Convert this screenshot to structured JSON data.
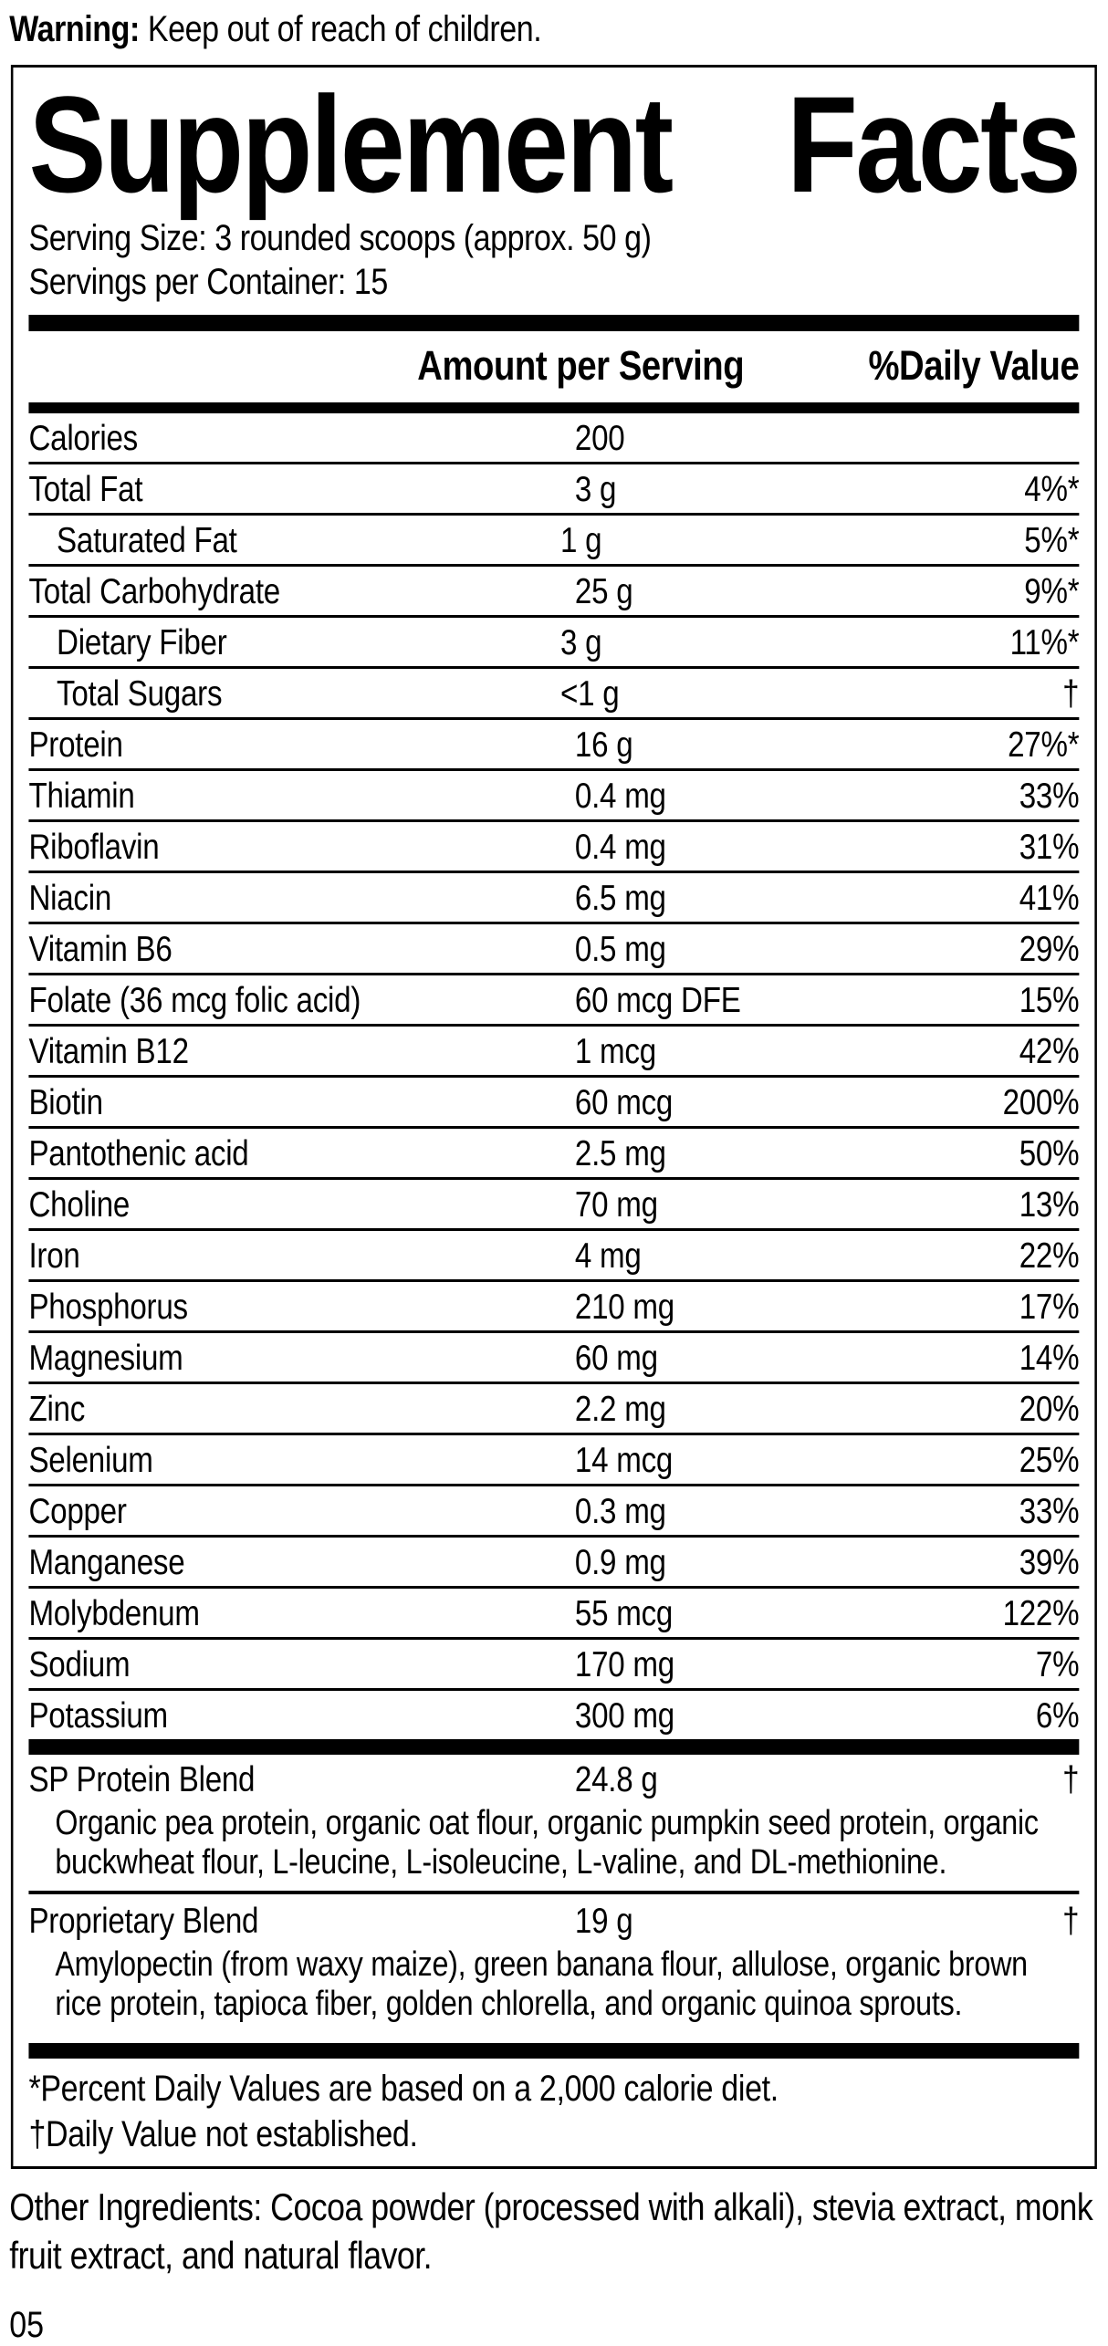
{
  "warning": {
    "label": "Warning:",
    "text": " Keep out of reach of children."
  },
  "title": {
    "word1": "Supplement",
    "word2": "Facts"
  },
  "serving": {
    "size": "Serving Size: 3 rounded scoops (approx. 50 g)",
    "per_container": "Servings per Container: 15"
  },
  "table": {
    "headers": {
      "amount": "Amount per Serving",
      "dv": "%Daily Value"
    },
    "rows": [
      {
        "name": "Calories",
        "amount": "200",
        "dv": "",
        "indent": false
      },
      {
        "name": "Total Fat",
        "amount": "3 g",
        "dv": "4%*",
        "indent": false
      },
      {
        "name": "Saturated Fat",
        "amount": "1 g",
        "dv": "5%*",
        "indent": true
      },
      {
        "name": "Total Carbohydrate",
        "amount": "25 g",
        "dv": "9%*",
        "indent": false
      },
      {
        "name": "Dietary Fiber",
        "amount": "3 g",
        "dv": "11%*",
        "indent": true
      },
      {
        "name": "Total Sugars",
        "amount": "<1 g",
        "dv": "†",
        "indent": true
      },
      {
        "name": "Protein",
        "amount": "16 g",
        "dv": "27%*",
        "indent": false
      },
      {
        "name": "Thiamin",
        "amount": "0.4 mg",
        "dv": "33%",
        "indent": false
      },
      {
        "name": "Riboflavin",
        "amount": "0.4 mg",
        "dv": "31%",
        "indent": false
      },
      {
        "name": "Niacin",
        "amount": "6.5 mg",
        "dv": "41%",
        "indent": false
      },
      {
        "name": "Vitamin B6",
        "amount": "0.5 mg",
        "dv": "29%",
        "indent": false
      },
      {
        "name": "Folate (36 mcg folic acid)",
        "amount": "60 mcg DFE",
        "dv": "15%",
        "indent": false
      },
      {
        "name": "Vitamin B12",
        "amount": "1 mcg",
        "dv": "42%",
        "indent": false
      },
      {
        "name": "Biotin",
        "amount": "60 mcg",
        "dv": "200%",
        "indent": false
      },
      {
        "name": "Pantothenic acid",
        "amount": "2.5 mg",
        "dv": "50%",
        "indent": false
      },
      {
        "name": "Choline",
        "amount": "70 mg",
        "dv": "13%",
        "indent": false
      },
      {
        "name": "Iron",
        "amount": "4 mg",
        "dv": "22%",
        "indent": false
      },
      {
        "name": "Phosphorus",
        "amount": "210 mg",
        "dv": "17%",
        "indent": false
      },
      {
        "name": "Magnesium",
        "amount": "60 mg",
        "dv": "14%",
        "indent": false
      },
      {
        "name": "Zinc",
        "amount": "2.2 mg",
        "dv": "20%",
        "indent": false
      },
      {
        "name": "Selenium",
        "amount": "14 mcg",
        "dv": "25%",
        "indent": false
      },
      {
        "name": "Copper",
        "amount": "0.3 mg",
        "dv": "33%",
        "indent": false
      },
      {
        "name": "Manganese",
        "amount": "0.9 mg",
        "dv": "39%",
        "indent": false
      },
      {
        "name": "Molybdenum",
        "amount": "55 mcg",
        "dv": "122%",
        "indent": false
      },
      {
        "name": "Sodium",
        "amount": "170 mg",
        "dv": "7%",
        "indent": false
      },
      {
        "name": "Potassium",
        "amount": "300 mg",
        "dv": "6%",
        "indent": false
      }
    ],
    "blends": [
      {
        "name": "SP Protein Blend",
        "amount": "24.8 g",
        "dv": "†",
        "description": "Organic pea protein, organic oat flour, organic pumpkin seed protein, organic buckwheat flour, L-leucine, L-isoleucine, L-valine, and DL-methionine."
      },
      {
        "name": "Proprietary Blend",
        "amount": "19 g",
        "dv": "†",
        "description": "Amylopectin (from waxy maize), green banana flour, allulose, organic brown rice protein, tapioca fiber, golden chlorella, and organic quinoa sprouts."
      }
    ],
    "footnotes": [
      "*Percent Daily Values are based on a 2,000 calorie diet.",
      "†Daily Value not established."
    ]
  },
  "other_ingredients": "Other Ingredients: Cocoa powder (processed with alkali), stevia extract, monk fruit extract, and natural flavor.",
  "page_number": "05",
  "colors": {
    "text": "#000000",
    "background": "#ffffff",
    "rules": "#000000"
  }
}
